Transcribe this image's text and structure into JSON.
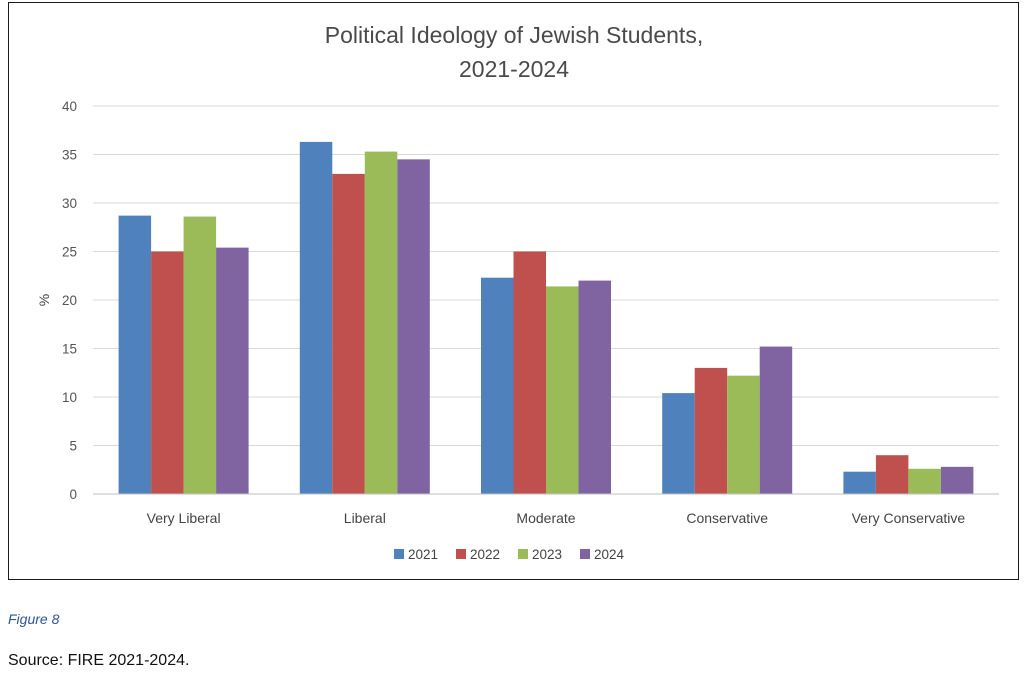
{
  "chart_data": {
    "type": "bar",
    "title": [
      "Political Ideology of Jewish Students,",
      "2021-2024"
    ],
    "xlabel": "",
    "ylabel": "%",
    "ylim": [
      0,
      40
    ],
    "yticks": [
      0,
      5,
      10,
      15,
      20,
      25,
      30,
      35,
      40
    ],
    "grid": true,
    "legend_position": "bottom",
    "categories": [
      "Very Liberal",
      "Liberal",
      "Moderate",
      "Conservative",
      "Very Conservative"
    ],
    "series": [
      {
        "name": "2021",
        "color": "#4f81bd",
        "values": [
          28.7,
          36.3,
          22.3,
          10.4,
          2.3
        ]
      },
      {
        "name": "2022",
        "color": "#c0504d",
        "values": [
          25.0,
          33.0,
          25.0,
          13.0,
          4.0
        ]
      },
      {
        "name": "2023",
        "color": "#9bbb59",
        "values": [
          28.6,
          35.3,
          21.4,
          12.2,
          2.6
        ]
      },
      {
        "name": "2024",
        "color": "#8064a2",
        "values": [
          25.4,
          34.5,
          22.0,
          15.2,
          2.8
        ]
      }
    ]
  },
  "caption": {
    "figure_label": "Figure 8",
    "source": "Source: FIRE 2021-2024."
  }
}
